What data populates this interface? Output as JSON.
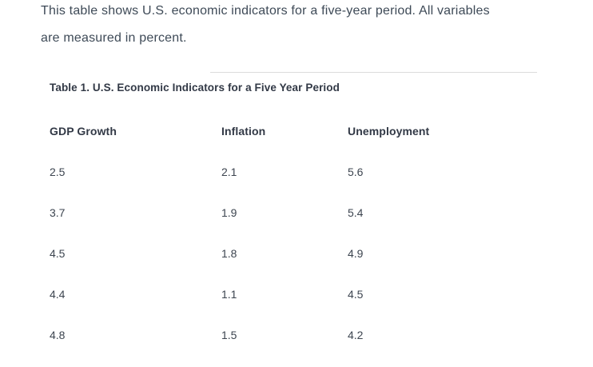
{
  "intro": {
    "text": "This table shows U.S. economic indicators for a five-year period. All variables are measured in percent.",
    "lines": [
      "This table shows U.S. economic indicators for a five-year period. All variables",
      "are measured in percent."
    ]
  },
  "table": {
    "caption": "Table 1. U.S. Economic Indicators for a Five Year Period",
    "columns": [
      "GDP Growth",
      "Inflation",
      "Unemployment"
    ],
    "rows": [
      [
        "2.5",
        "2.1",
        "5.6"
      ],
      [
        "3.7",
        "1.9",
        "5.4"
      ],
      [
        "4.5",
        "1.8",
        "4.9"
      ],
      [
        "4.4",
        "1.1",
        "4.5"
      ],
      [
        "4.8",
        "1.5",
        "4.2"
      ]
    ]
  },
  "chart_data": {
    "type": "table",
    "title": "Table 1. U.S. Economic Indicators for a Five Year Period",
    "columns": [
      "GDP Growth",
      "Inflation",
      "Unemployment"
    ],
    "rows": [
      [
        2.5,
        2.1,
        5.6
      ],
      [
        3.7,
        1.9,
        5.4
      ],
      [
        4.5,
        1.8,
        4.9
      ],
      [
        4.4,
        1.1,
        4.5
      ],
      [
        4.8,
        1.5,
        4.2
      ]
    ],
    "units": "percent"
  },
  "colors": {
    "background": "#ffffff",
    "paragraph_text": "#3e4a57",
    "heading_text": "#323946",
    "data_text": "#3d4550",
    "divider": "#dcdcdc"
  }
}
